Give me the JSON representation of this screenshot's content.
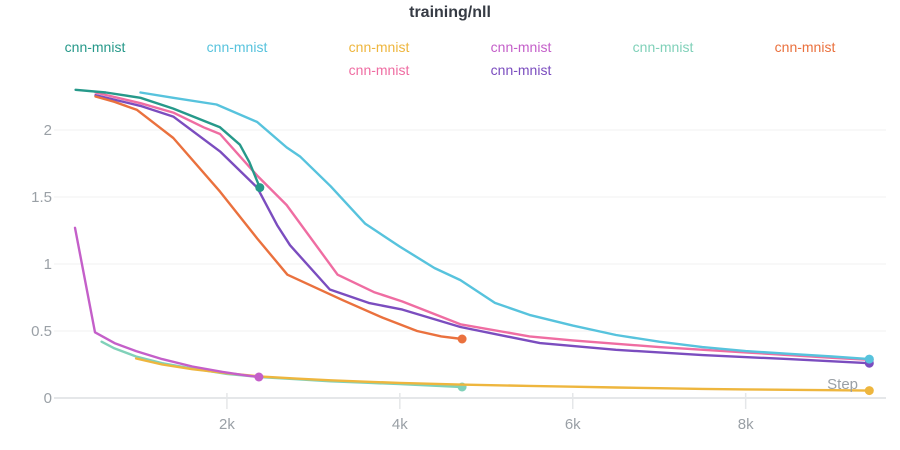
{
  "title": "training/nll",
  "axis": {
    "x_title": "Step",
    "x_ticks": [
      {
        "value": 2000,
        "label": "2k"
      },
      {
        "value": 4000,
        "label": "4k"
      },
      {
        "value": 6000,
        "label": "6k"
      },
      {
        "value": 8000,
        "label": "8k"
      }
    ],
    "y_ticks": [
      {
        "value": 0,
        "label": "0"
      },
      {
        "value": 0.5,
        "label": "0.5"
      },
      {
        "value": 1,
        "label": "1"
      },
      {
        "value": 1.5,
        "label": "1.5"
      },
      {
        "value": 2,
        "label": "2"
      }
    ]
  },
  "colors": {
    "title_text": "#363b44",
    "axis_text": "#9aa0a6",
    "gridline": "#f0f1f2",
    "axis_line": "#e5e7e9",
    "background": "#ffffff"
  },
  "chart_data": {
    "type": "line",
    "title": "training/nll",
    "xlabel": "Step",
    "ylabel": "",
    "xlim": [
      0,
      9600
    ],
    "ylim": [
      0,
      2.5
    ],
    "grid": true,
    "legend_position": "top",
    "draw_order": [
      4,
      2,
      3,
      6,
      7,
      5,
      1,
      0
    ],
    "series": [
      {
        "name": "cnn-mnist",
        "color": "#26998a",
        "end_dot": true,
        "points": [
          [
            250,
            2.3
          ],
          [
            600,
            2.28
          ],
          [
            1000,
            2.24
          ],
          [
            1380,
            2.16
          ],
          [
            1920,
            2.02
          ],
          [
            2150,
            1.89
          ],
          [
            2260,
            1.76
          ],
          [
            2380,
            1.57
          ]
        ]
      },
      {
        "name": "cnn-mnist",
        "color": "#57c3dd",
        "end_dot": true,
        "points": [
          [
            1000,
            2.28
          ],
          [
            1380,
            2.24
          ],
          [
            1880,
            2.19
          ],
          [
            2350,
            2.06
          ],
          [
            2690,
            1.87
          ],
          [
            2850,
            1.8
          ],
          [
            3200,
            1.58
          ],
          [
            3600,
            1.3
          ],
          [
            4000,
            1.13
          ],
          [
            4400,
            0.97
          ],
          [
            4700,
            0.88
          ],
          [
            5100,
            0.71
          ],
          [
            5500,
            0.62
          ],
          [
            6000,
            0.54
          ],
          [
            6500,
            0.47
          ],
          [
            7000,
            0.42
          ],
          [
            7500,
            0.38
          ],
          [
            8000,
            0.35
          ],
          [
            8500,
            0.33
          ],
          [
            9000,
            0.31
          ],
          [
            9430,
            0.29
          ]
        ]
      },
      {
        "name": "cnn-mnist",
        "color": "#eeb63e",
        "end_dot": true,
        "points": [
          [
            950,
            0.295
          ],
          [
            1250,
            0.25
          ],
          [
            1600,
            0.215
          ],
          [
            2000,
            0.185
          ],
          [
            2400,
            0.16
          ],
          [
            2800,
            0.145
          ],
          [
            3200,
            0.132
          ],
          [
            3600,
            0.122
          ],
          [
            4000,
            0.113
          ],
          [
            4700,
            0.1
          ],
          [
            5500,
            0.09
          ],
          [
            6000,
            0.084
          ],
          [
            6500,
            0.078
          ],
          [
            7000,
            0.073
          ],
          [
            7500,
            0.068
          ],
          [
            8000,
            0.064
          ],
          [
            8500,
            0.061
          ],
          [
            9000,
            0.058
          ],
          [
            9430,
            0.055
          ]
        ]
      },
      {
        "name": "cnn-mnist",
        "color": "#c45fc9",
        "end_dot": true,
        "points": [
          [
            243,
            1.27
          ],
          [
            474,
            0.49
          ],
          [
            700,
            0.41
          ],
          [
            950,
            0.35
          ],
          [
            1250,
            0.29
          ],
          [
            1600,
            0.235
          ],
          [
            1950,
            0.195
          ],
          [
            2200,
            0.17
          ],
          [
            2370,
            0.157
          ]
        ]
      },
      {
        "name": "cnn-mnist",
        "color": "#80d1b9",
        "end_dot": true,
        "points": [
          [
            550,
            0.42
          ],
          [
            700,
            0.37
          ],
          [
            950,
            0.31
          ],
          [
            1250,
            0.26
          ],
          [
            1600,
            0.22
          ],
          [
            2000,
            0.18
          ],
          [
            2400,
            0.155
          ],
          [
            2800,
            0.14
          ],
          [
            3200,
            0.125
          ],
          [
            3600,
            0.114
          ],
          [
            4000,
            0.104
          ],
          [
            4300,
            0.095
          ],
          [
            4720,
            0.082
          ]
        ]
      },
      {
        "name": "cnn-mnist",
        "color": "#ea713e",
        "end_dot": true,
        "points": [
          [
            480,
            2.25
          ],
          [
            700,
            2.21
          ],
          [
            960,
            2.15
          ],
          [
            1380,
            1.94
          ],
          [
            1920,
            1.54
          ],
          [
            2350,
            1.19
          ],
          [
            2700,
            0.92
          ],
          [
            3340,
            0.73
          ],
          [
            3800,
            0.6
          ],
          [
            4200,
            0.5
          ],
          [
            4480,
            0.46
          ],
          [
            4720,
            0.44
          ]
        ]
      },
      {
        "name": "cnn-mnist",
        "color": "#ef6da2",
        "end_dot": true,
        "points": [
          [
            480,
            2.28
          ],
          [
            1000,
            2.2
          ],
          [
            1380,
            2.13
          ],
          [
            1730,
            2.02
          ],
          [
            1920,
            1.97
          ],
          [
            2350,
            1.66
          ],
          [
            2690,
            1.44
          ],
          [
            3280,
            0.92
          ],
          [
            3700,
            0.79
          ],
          [
            4030,
            0.72
          ],
          [
            4700,
            0.55
          ],
          [
            5500,
            0.46
          ],
          [
            6000,
            0.43
          ],
          [
            7000,
            0.38
          ],
          [
            8000,
            0.34
          ],
          [
            9000,
            0.3
          ],
          [
            9430,
            0.285
          ]
        ]
      },
      {
        "name": "cnn-mnist",
        "color": "#7b4dbf",
        "end_dot": true,
        "points": [
          [
            480,
            2.26
          ],
          [
            1000,
            2.18
          ],
          [
            1380,
            2.1
          ],
          [
            1920,
            1.84
          ],
          [
            2350,
            1.57
          ],
          [
            2580,
            1.29
          ],
          [
            2730,
            1.14
          ],
          [
            3190,
            0.81
          ],
          [
            3640,
            0.71
          ],
          [
            4030,
            0.66
          ],
          [
            4700,
            0.53
          ],
          [
            5620,
            0.41
          ],
          [
            6500,
            0.36
          ],
          [
            7500,
            0.32
          ],
          [
            8500,
            0.29
          ],
          [
            9430,
            0.26
          ]
        ]
      }
    ]
  }
}
